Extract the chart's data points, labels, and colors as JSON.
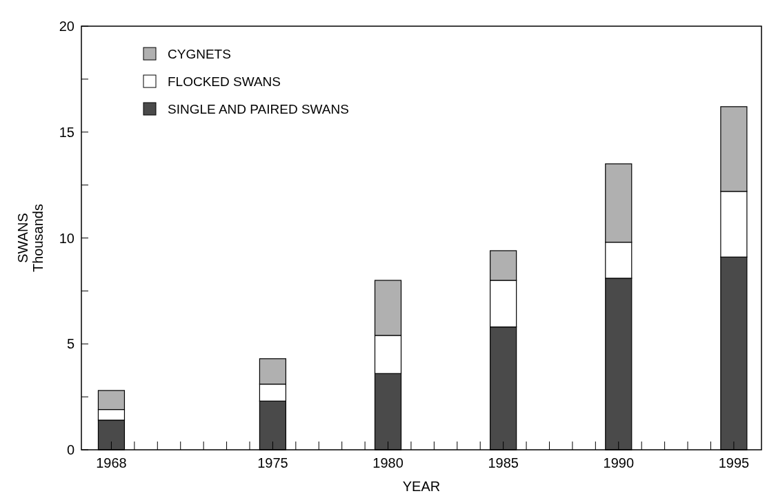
{
  "chart_data": {
    "type": "bar",
    "stacked": true,
    "xlabel": "YEAR",
    "ylabel": "SWANS\nThousands",
    "x": [
      1968,
      1975,
      1980,
      1985,
      1990,
      1995
    ],
    "series": [
      {
        "name": "SINGLE AND PAIRED SWANS",
        "color": "#4a4a4a",
        "values": [
          1.4,
          2.3,
          3.6,
          5.8,
          8.1,
          9.1
        ]
      },
      {
        "name": "FLOCKED SWANS",
        "color": "#ffffff",
        "values": [
          0.5,
          0.8,
          1.8,
          2.2,
          1.7,
          3.1
        ]
      },
      {
        "name": "CYGNETS",
        "color": "#b0b0b0",
        "values": [
          0.9,
          1.2,
          2.6,
          1.4,
          3.7,
          4.0
        ]
      }
    ],
    "xlim": [
      1966.7,
      1996.2
    ],
    "xticks": [
      1968,
      {
        "value": 1969,
        "label": null
      },
      {
        "value": 1970,
        "label": null
      },
      {
        "value": 1971,
        "label": null
      },
      {
        "value": 1972,
        "label": null
      },
      {
        "value": 1973,
        "label": null
      },
      {
        "value": 1974,
        "label": null
      },
      1975,
      {
        "value": 1976,
        "label": null
      },
      {
        "value": 1977,
        "label": null
      },
      {
        "value": 1978,
        "label": null
      },
      {
        "value": 1979,
        "label": null
      },
      1980,
      {
        "value": 1981,
        "label": null
      },
      {
        "value": 1982,
        "label": null
      },
      {
        "value": 1983,
        "label": null
      },
      {
        "value": 1984,
        "label": null
      },
      1985,
      {
        "value": 1986,
        "label": null
      },
      {
        "value": 1987,
        "label": null
      },
      {
        "value": 1988,
        "label": null
      },
      {
        "value": 1989,
        "label": null
      },
      1990,
      {
        "value": 1991,
        "label": null
      },
      {
        "value": 1992,
        "label": null
      },
      {
        "value": 1993,
        "label": null
      },
      {
        "value": 1994,
        "label": null
      },
      1995
    ],
    "ylim": [
      0,
      20
    ],
    "yticks": [
      0,
      {
        "value": 2.5,
        "label": null
      },
      5,
      {
        "value": 7.5,
        "label": null
      },
      10,
      {
        "value": 12.5,
        "label": null
      },
      15,
      {
        "value": 17.5,
        "label": null
      },
      20
    ],
    "legend": "top left",
    "grid": false
  }
}
